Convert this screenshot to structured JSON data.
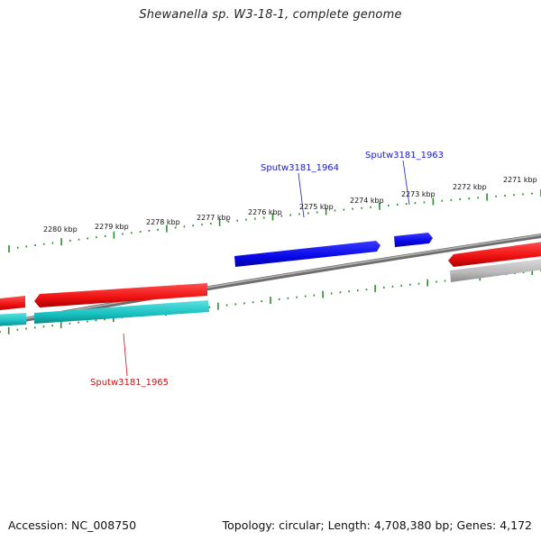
{
  "title": "Shewanella sp. W3-18-1, complete genome",
  "footer": {
    "accession": "Accession: NC_008750",
    "summary": "Topology: circular; Length: 4,708,380 bp; Genes: 4,172"
  },
  "scale": {
    "unit": "kbp",
    "labels": [
      "2280 kbp",
      "2279 kbp",
      "2278 kbp",
      "2277 kbp",
      "2276 kbp",
      "2275 kbp",
      "2274 kbp",
      "2273 kbp",
      "2272 kbp",
      "2271 kbp"
    ],
    "tick_color": "#2e8b2e"
  },
  "genes": [
    {
      "locus": "Sputw3181_1963",
      "strand": "forward",
      "label_color": "#1a1acc"
    },
    {
      "locus": "Sputw3181_1964",
      "strand": "forward",
      "label_color": "#1a1acc"
    },
    {
      "locus": "Sputw3181_1965",
      "strand": "reverse",
      "label_color": "#cc1111"
    }
  ],
  "colors": {
    "backbone": "#8a8a8a",
    "forward_cds": "#0a0aee",
    "reverse_cds": "#ee1111",
    "reverse_rna": "#22c8c8",
    "reverse_pseudo": "#b8b8b8"
  }
}
